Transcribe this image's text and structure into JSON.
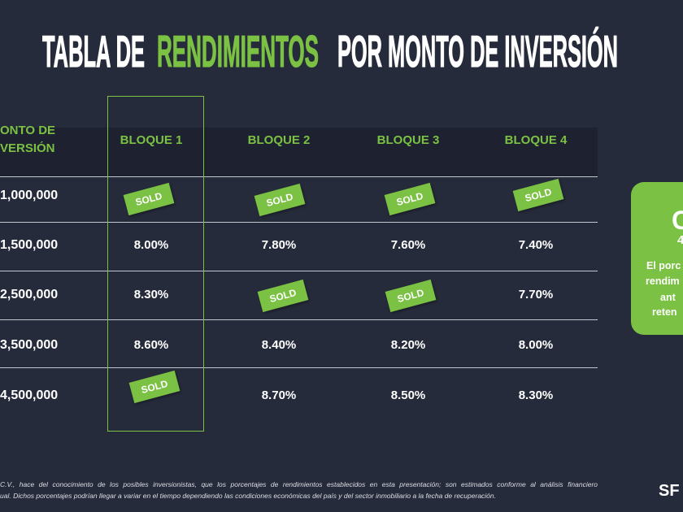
{
  "title": {
    "lead": "TABLA DE",
    "highlight": "RENDIMIENTOS",
    "tail": "POR MONTO DE INVERSIÓN"
  },
  "colors": {
    "background": "#262b3b",
    "header_band": "#1d2130",
    "accent_green": "#7bc143",
    "text": "#ffffff",
    "divider": "#c4c7cf"
  },
  "table": {
    "amount_header": [
      "ONTO DE",
      "VERSIÓN"
    ],
    "columns": [
      "BLOQUE 1",
      "BLOQUE 2",
      "BLOQUE 3",
      "BLOQUE 4"
    ],
    "highlighted_column": 0,
    "rows": [
      {
        "amount": "1,000,000",
        "cells": [
          {
            "text": "SOLD",
            "sold": true
          },
          {
            "text": "SOLD",
            "sold": true
          },
          {
            "text": "SOLD",
            "sold": true
          },
          {
            "text": "SOLD",
            "sold": true
          }
        ]
      },
      {
        "amount": "1,500,000",
        "cells": [
          {
            "text": "8.00%",
            "sold": false
          },
          {
            "text": "7.80%",
            "sold": false
          },
          {
            "text": "7.60%",
            "sold": false
          },
          {
            "text": "7.40%",
            "sold": false
          }
        ]
      },
      {
        "amount": "2,500,000",
        "cells": [
          {
            "text": "8.30%",
            "sold": false
          },
          {
            "text": "SOLD",
            "sold": true
          },
          {
            "text": "SOLD",
            "sold": true
          },
          {
            "text": "7.70%",
            "sold": false
          }
        ]
      },
      {
        "amount": "3,500,000",
        "cells": [
          {
            "text": "8.60%",
            "sold": false
          },
          {
            "text": "8.40%",
            "sold": false
          },
          {
            "text": "8.20%",
            "sold": false
          },
          {
            "text": "8.00%",
            "sold": false
          }
        ]
      },
      {
        "amount": "4,500,000",
        "cells": [
          {
            "text": "SOLD",
            "sold": true
          },
          {
            "text": "8.70%",
            "sold": false
          },
          {
            "text": "8.50%",
            "sold": false
          },
          {
            "text": "8.30%",
            "sold": false
          }
        ]
      }
    ]
  },
  "side_card": {
    "heading": "C",
    "subheading": "4",
    "lines": [
      "El porc",
      "rendim",
      "ant",
      "reten"
    ]
  },
  "disclaimer": [
    "C.V., hace del conocimiento de los posibles inversionistas, que los porcentajes de rendimientos establecidos en esta presentación; son estimados conforme al análisis financiero",
    "ual. Dichos porcentajes podrían llegar a variar en el tiempo dependiendo las condiciones económicas del país y del sector inmobiliario a la fecha de recuperación."
  ],
  "logo": {
    "text": "SF"
  }
}
